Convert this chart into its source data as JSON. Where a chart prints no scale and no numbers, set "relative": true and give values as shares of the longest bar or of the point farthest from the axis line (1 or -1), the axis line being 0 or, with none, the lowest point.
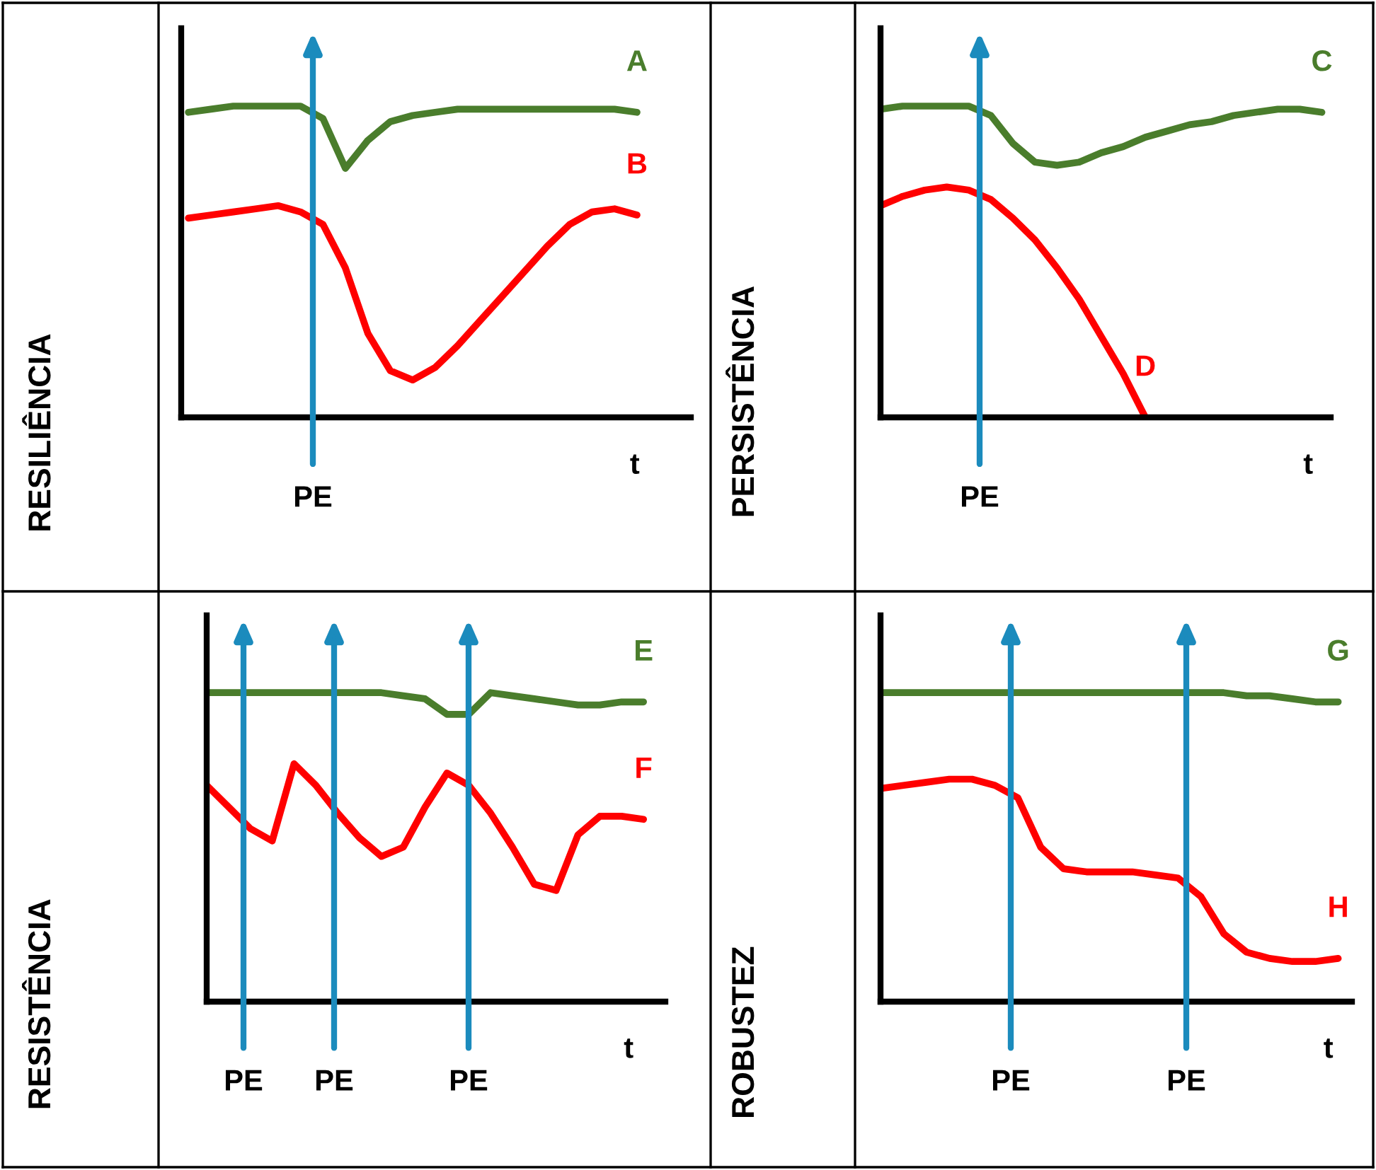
{
  "chart_data": [
    {
      "type": "line",
      "relative": true,
      "ylabel": "RESILIÊNCIA",
      "xlabel": "t",
      "categories": [
        null,
        null,
        null,
        null,
        null,
        null,
        null,
        null,
        null,
        null,
        null,
        null,
        null,
        null,
        null,
        null,
        null,
        null,
        null,
        null,
        null
      ],
      "series": [
        {
          "name": "A",
          "color": "#4a7d2c",
          "values": [
            0.98,
            0.99,
            1,
            1,
            1,
            1,
            0.96,
            0.8,
            0.89,
            0.95,
            0.97,
            0.98,
            0.99,
            0.99,
            0.99,
            0.99,
            0.99,
            0.99,
            0.99,
            0.99,
            0.98
          ]
        },
        {
          "name": "B",
          "color": "#ff0000",
          "values": [
            0.64,
            0.65,
            0.66,
            0.67,
            0.68,
            0.66,
            0.62,
            0.48,
            0.27,
            0.15,
            0.12,
            0.16,
            0.23,
            0.31,
            0.39,
            0.47,
            0.55,
            0.62,
            0.66,
            0.67,
            0.65
          ]
        }
      ],
      "annotations": [
        "PE"
      ]
    },
    {
      "type": "line",
      "relative": true,
      "ylabel": "PERSISTÊNCIA",
      "xlabel": "t",
      "categories": [
        null,
        null,
        null,
        null,
        null,
        null,
        null,
        null,
        null,
        null,
        null,
        null,
        null,
        null,
        null,
        null,
        null,
        null,
        null,
        null,
        null
      ],
      "series": [
        {
          "name": "C",
          "color": "#4a7d2c",
          "values": [
            0.99,
            1,
            1,
            1,
            1,
            0.97,
            0.88,
            0.82,
            0.81,
            0.82,
            0.85,
            0.87,
            0.9,
            0.92,
            0.94,
            0.95,
            0.97,
            0.98,
            0.99,
            0.99,
            0.98
          ]
        },
        {
          "name": "D",
          "color": "#ff0000",
          "values": [
            0.68,
            0.71,
            0.73,
            0.74,
            0.73,
            0.7,
            0.64,
            0.57,
            0.48,
            0.38,
            0.26,
            0.14,
            0,
            null,
            null,
            null,
            null,
            null,
            null,
            null,
            null
          ]
        }
      ],
      "annotations": [
        "PE"
      ]
    },
    {
      "type": "line",
      "relative": true,
      "ylabel": "RESISTÊNCIA",
      "xlabel": "t",
      "categories": [
        null,
        null,
        null,
        null,
        null,
        null,
        null,
        null,
        null,
        null,
        null,
        null,
        null,
        null,
        null,
        null,
        null,
        null,
        null,
        null,
        null
      ],
      "series": [
        {
          "name": "E",
          "color": "#4a7d2c",
          "values": [
            1,
            1,
            1,
            1,
            1,
            1,
            1,
            1,
            1,
            0.99,
            0.98,
            0.93,
            0.93,
            1,
            0.99,
            0.98,
            0.97,
            0.96,
            0.96,
            0.97,
            0.97
          ]
        },
        {
          "name": "F",
          "color": "#ff0000",
          "values": [
            0.7,
            0.63,
            0.56,
            0.52,
            0.77,
            0.7,
            0.61,
            0.53,
            0.47,
            0.5,
            0.63,
            0.74,
            0.7,
            0.61,
            0.5,
            0.38,
            0.36,
            0.54,
            0.6,
            0.6,
            0.59
          ]
        }
      ],
      "annotations": [
        "PE",
        "PE",
        "PE"
      ]
    },
    {
      "type": "line",
      "relative": true,
      "ylabel": "ROBUSTEZ",
      "xlabel": "t",
      "categories": [
        null,
        null,
        null,
        null,
        null,
        null,
        null,
        null,
        null,
        null,
        null,
        null,
        null,
        null,
        null,
        null,
        null,
        null,
        null,
        null,
        null
      ],
      "series": [
        {
          "name": "G",
          "color": "#4a7d2c",
          "values": [
            1,
            1,
            1,
            1,
            1,
            1,
            1,
            1,
            1,
            1,
            1,
            1,
            1,
            1,
            1,
            1,
            0.99,
            0.99,
            0.98,
            0.97,
            0.97
          ]
        },
        {
          "name": "H",
          "color": "#ff0000",
          "values": [
            0.69,
            0.7,
            0.71,
            0.72,
            0.72,
            0.7,
            0.66,
            0.5,
            0.43,
            0.42,
            0.42,
            0.42,
            0.41,
            0.4,
            0.34,
            0.22,
            0.16,
            0.14,
            0.13,
            0.13,
            0.14
          ]
        }
      ],
      "annotations": [
        "PE",
        "PE"
      ]
    }
  ]
}
